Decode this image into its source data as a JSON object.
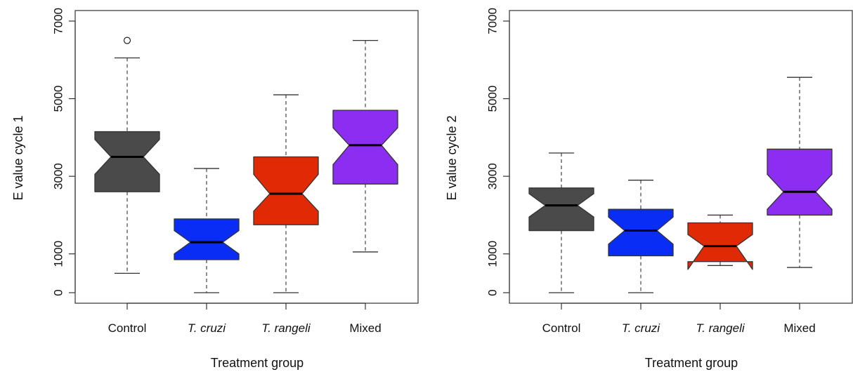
{
  "chart_data": [
    {
      "type": "box",
      "notched": true,
      "xlabel": "Treatment group",
      "ylabel": "E value cycle 1",
      "ylim": [
        0,
        7000
      ],
      "yticks": [
        0,
        1000,
        3000,
        5000,
        7000
      ],
      "grid": false,
      "categories": [
        {
          "label": "Control",
          "italic": false,
          "color": "#4a4a4a"
        },
        {
          "label": "T. cruzi",
          "italic": true,
          "color": "#0a2df5"
        },
        {
          "label": "T. rangeli",
          "italic": true,
          "color": "#e02a05"
        },
        {
          "label": "Mixed",
          "italic": false,
          "color": "#8b2ef2"
        }
      ],
      "boxes": [
        {
          "whisker_low": 500,
          "q1": 2600,
          "median": 3500,
          "q3": 4150,
          "whisker_high": 6050,
          "notch_low": 3050,
          "notch_high": 3950,
          "outliers": [
            6500
          ]
        },
        {
          "whisker_low": 0,
          "q1": 850,
          "median": 1300,
          "q3": 1900,
          "whisker_high": 3200,
          "notch_low": 1000,
          "notch_high": 1600,
          "outliers": []
        },
        {
          "whisker_low": 0,
          "q1": 1750,
          "median": 2550,
          "q3": 3500,
          "whisker_high": 5100,
          "notch_low": 2100,
          "notch_high": 3050,
          "outliers": []
        },
        {
          "whisker_low": 1050,
          "q1": 2800,
          "median": 3800,
          "q3": 4700,
          "whisker_high": 6500,
          "notch_low": 3300,
          "notch_high": 4250,
          "outliers": []
        }
      ]
    },
    {
      "type": "box",
      "notched": true,
      "xlabel": "Treatment group",
      "ylabel": "E value cycle 2",
      "ylim": [
        0,
        7000
      ],
      "yticks": [
        0,
        1000,
        3000,
        5000,
        7000
      ],
      "grid": false,
      "categories": [
        {
          "label": "Control",
          "italic": false,
          "color": "#4a4a4a"
        },
        {
          "label": "T. cruzi",
          "italic": true,
          "color": "#0a2df5"
        },
        {
          "label": "T. rangeli",
          "italic": true,
          "color": "#e02a05"
        },
        {
          "label": "Mixed",
          "italic": false,
          "color": "#8b2ef2"
        }
      ],
      "boxes": [
        {
          "whisker_low": 0,
          "q1": 1600,
          "median": 2250,
          "q3": 2700,
          "whisker_high": 3600,
          "notch_low": 1950,
          "notch_high": 2550,
          "outliers": []
        },
        {
          "whisker_low": 0,
          "q1": 950,
          "median": 1600,
          "q3": 2150,
          "whisker_high": 2900,
          "notch_low": 1250,
          "notch_high": 1950,
          "outliers": []
        },
        {
          "whisker_low": 700,
          "q1": 800,
          "median": 1200,
          "q3": 1800,
          "whisker_high": 2000,
          "notch_low": 600,
          "notch_high": 1500,
          "outliers": []
        },
        {
          "whisker_low": 650,
          "q1": 2000,
          "median": 2600,
          "q3": 3700,
          "whisker_high": 5550,
          "notch_low": 2150,
          "notch_high": 3050,
          "outliers": []
        }
      ]
    }
  ]
}
